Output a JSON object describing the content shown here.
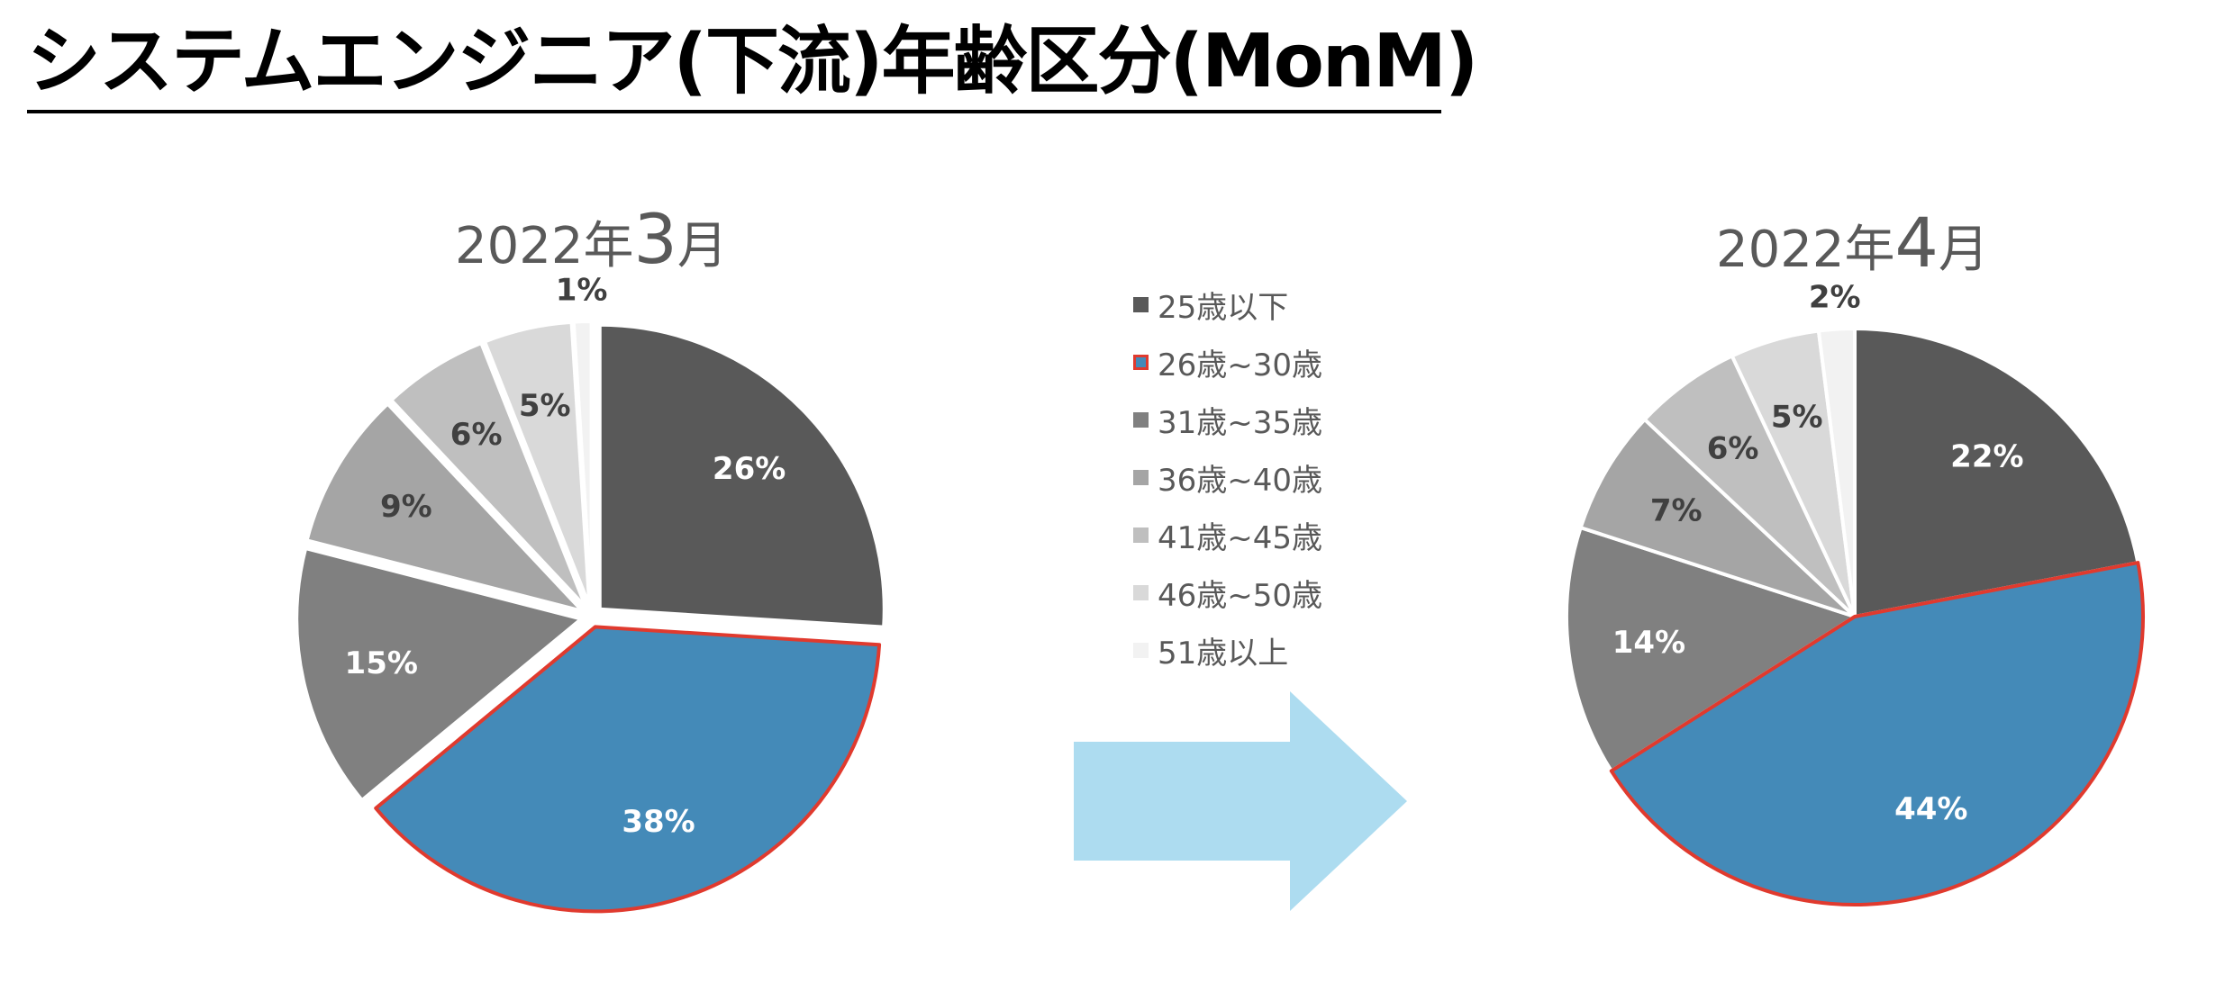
{
  "title": "システムエンジニア(下流)年齢区分(MonM)",
  "legend": [
    {
      "label": "25歳以下",
      "color": "#595959"
    },
    {
      "label": "26歳~30歳",
      "color": "#448ab8",
      "highlight": "#e03a2e"
    },
    {
      "label": "31歳~35歳",
      "color": "#808080"
    },
    {
      "label": "36歳~40歳",
      "color": "#a5a5a5"
    },
    {
      "label": "41歳~45歳",
      "color": "#bfbfbf"
    },
    {
      "label": "46歳~50歳",
      "color": "#d9d9d9"
    },
    {
      "label": "51歳以上",
      "color": "#f2f2f2"
    }
  ],
  "arrow_color": "#addcf0",
  "chart_data": [
    {
      "type": "pie",
      "title_prefix": "2022年",
      "title_number": "3",
      "title_suffix": "月",
      "categories": [
        "25歳以下",
        "26歳~30歳",
        "31歳~35歳",
        "36歳~40歳",
        "41歳~45歳",
        "46歳~50歳",
        "51歳以上"
      ],
      "values": [
        26,
        38,
        15,
        9,
        6,
        5,
        1
      ],
      "data_labels": [
        "26%",
        "38%",
        "15%",
        "9%",
        "6%",
        "5%",
        "1%"
      ],
      "highlighted_category": "26歳~30歳",
      "exploded": true
    },
    {
      "type": "pie",
      "title_prefix": "2022年",
      "title_number": "4",
      "title_suffix": "月",
      "categories": [
        "25歳以下",
        "26歳~30歳",
        "31歳~35歳",
        "36歳~40歳",
        "41歳~45歳",
        "46歳~50歳",
        "51歳以上"
      ],
      "values": [
        22,
        44,
        14,
        7,
        6,
        5,
        2
      ],
      "data_labels": [
        "22%",
        "44%",
        "14%",
        "7%",
        "6%",
        "5%",
        "2%"
      ],
      "highlighted_category": "26歳~30歳",
      "exploded": false
    }
  ]
}
